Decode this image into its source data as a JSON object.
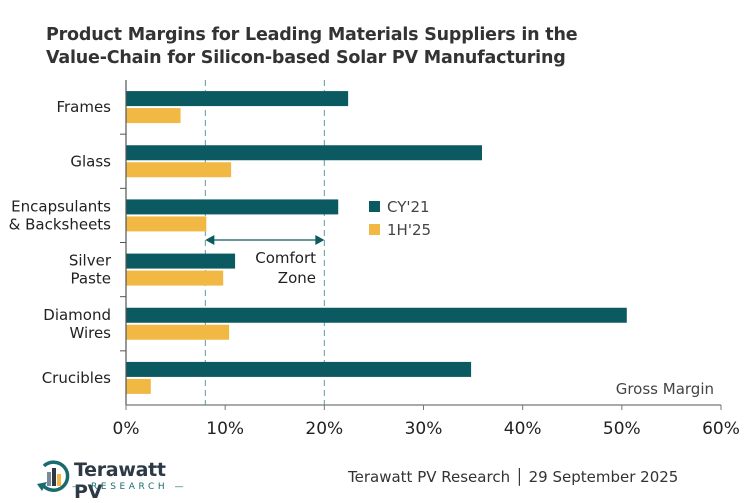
{
  "title": {
    "line1": "Product Margins for Leading Materials Suppliers in the",
    "line2": "Value-Chain for Silicon-based Solar PV Manufacturing"
  },
  "chart_data": {
    "type": "bar",
    "orientation": "horizontal",
    "title": "Product Margins for Leading Materials Suppliers in the Value-Chain for Silicon-based Solar PV Manufacturing",
    "categories": [
      [
        "Frames"
      ],
      [
        "Glass"
      ],
      [
        "Encapsulants",
        "& Backsheets"
      ],
      [
        "Silver",
        "Paste"
      ],
      [
        "Diamond",
        "Wires"
      ],
      [
        "Crucibles"
      ]
    ],
    "series": [
      {
        "name": "CY'21",
        "color": "#0b5a62",
        "values": [
          22.4,
          35.9,
          21.4,
          11.0,
          50.5,
          34.8
        ]
      },
      {
        "name": "1H'25",
        "color": "#f2b844",
        "values": [
          5.5,
          10.6,
          8.1,
          9.8,
          10.4,
          2.5
        ]
      }
    ],
    "xlabel": "Gross Margin",
    "ylabel": "",
    "xlim": [
      0,
      60
    ],
    "xticks": [
      "0%",
      "10%",
      "20%",
      "30%",
      "40%",
      "50%",
      "60%"
    ],
    "grid": false,
    "legend": "center-right",
    "reference_lines": [
      8,
      20
    ],
    "annotation": {
      "text_line1": "Comfort",
      "text_line2": "Zone",
      "from": 8,
      "to": 20
    }
  },
  "footer": {
    "logo_name": "Terawatt PV",
    "logo_sub": "— RESEARCH —",
    "credit": "Terawatt PV Research │ 29 September 2025"
  }
}
